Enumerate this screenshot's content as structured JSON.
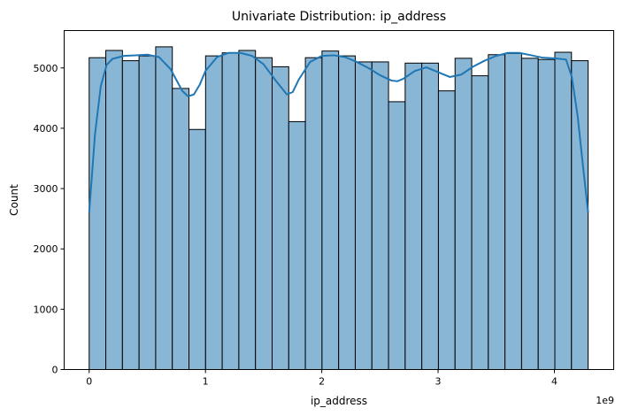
{
  "chart_data": {
    "type": "bar",
    "title": "Univariate Distribution: ip_address",
    "xlabel": "ip_address",
    "ylabel": "Count",
    "x_multiplier_label": "1e9",
    "xlim": [
      -0.215,
      4.51
    ],
    "ylim": [
      0,
      5620
    ],
    "x_ticks": [
      0,
      1,
      2,
      3,
      4
    ],
    "x_tick_labels": [
      "0",
      "1",
      "2",
      "3",
      "4"
    ],
    "y_ticks": [
      0,
      1000,
      2000,
      3000,
      4000,
      5000
    ],
    "y_tick_labels": [
      "0",
      "1000",
      "2000",
      "3000",
      "4000",
      "5000"
    ],
    "grid": false,
    "legend": "none",
    "bins": {
      "start": 0,
      "end": 4.29,
      "count": 30
    },
    "values": [
      5170,
      5290,
      5120,
      5200,
      5350,
      4660,
      3980,
      5200,
      5250,
      5290,
      5170,
      5020,
      4110,
      5170,
      5280,
      5200,
      5100,
      5100,
      4440,
      5080,
      5080,
      4620,
      5160,
      4870,
      5220,
      5240,
      5160,
      5140,
      5260,
      5120
    ],
    "kde": {
      "x": [
        0,
        0.05,
        0.1,
        0.15,
        0.2,
        0.3,
        0.4,
        0.5,
        0.6,
        0.7,
        0.8,
        0.85,
        0.9,
        0.95,
        1.0,
        1.1,
        1.2,
        1.3,
        1.4,
        1.5,
        1.6,
        1.7,
        1.75,
        1.8,
        1.9,
        2.0,
        2.1,
        2.2,
        2.3,
        2.4,
        2.5,
        2.6,
        2.65,
        2.7,
        2.8,
        2.9,
        3.0,
        3.1,
        3.2,
        3.3,
        3.4,
        3.5,
        3.6,
        3.7,
        3.8,
        3.9,
        4.0,
        4.1,
        4.15,
        4.2,
        4.25,
        4.29
      ],
      "y": [
        2600,
        3900,
        4700,
        5050,
        5150,
        5200,
        5210,
        5220,
        5180,
        4980,
        4620,
        4530,
        4560,
        4720,
        4950,
        5180,
        5250,
        5250,
        5200,
        5060,
        4800,
        4560,
        4600,
        4800,
        5100,
        5200,
        5210,
        5180,
        5100,
        5000,
        4880,
        4790,
        4780,
        4820,
        4950,
        5010,
        4930,
        4850,
        4890,
        5020,
        5120,
        5200,
        5250,
        5250,
        5210,
        5170,
        5160,
        5140,
        4850,
        4200,
        3300,
        2600
      ]
    },
    "bar_fill": "#8ab6d6",
    "bar_edge": "#000000",
    "kde_color": "#1f77b4"
  }
}
